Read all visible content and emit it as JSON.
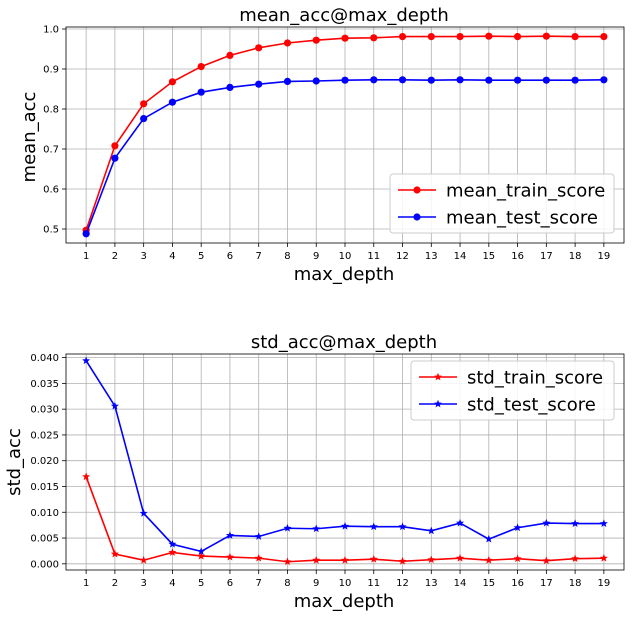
{
  "chart_data": [
    {
      "type": "line",
      "title": "mean_acc@max_depth",
      "xlabel": "max_depth",
      "ylabel": "mean_acc",
      "x": [
        1,
        2,
        3,
        4,
        5,
        6,
        7,
        8,
        9,
        10,
        11,
        12,
        13,
        14,
        15,
        16,
        17,
        18,
        19
      ],
      "ylim": [
        0.465,
        1.005
      ],
      "xlim": [
        0.3,
        19.7
      ],
      "yticks": [
        "0.5",
        "0.6",
        "0.7",
        "0.8",
        "0.9",
        "1.0"
      ],
      "yticks_values": [
        0.5,
        0.6,
        0.7,
        0.8,
        0.9,
        1.0
      ],
      "grid": true,
      "legend_position": "lower-right",
      "series": [
        {
          "name": "mean_train_score",
          "color": "#ff0000",
          "marker": "circle",
          "values": [
            0.497,
            0.708,
            0.813,
            0.868,
            0.906,
            0.934,
            0.953,
            0.965,
            0.972,
            0.977,
            0.978,
            0.981,
            0.981,
            0.981,
            0.982,
            0.981,
            0.982,
            0.981,
            0.981
          ]
        },
        {
          "name": "mean_test_score",
          "color": "#0000ff",
          "marker": "circle",
          "values": [
            0.488,
            0.677,
            0.776,
            0.817,
            0.842,
            0.854,
            0.862,
            0.869,
            0.87,
            0.872,
            0.873,
            0.873,
            0.872,
            0.873,
            0.872,
            0.872,
            0.872,
            0.872,
            0.873
          ]
        }
      ]
    },
    {
      "type": "line",
      "title": "std_acc@max_depth",
      "xlabel": "max_depth",
      "ylabel": "std_acc",
      "x": [
        1,
        2,
        3,
        4,
        5,
        6,
        7,
        8,
        9,
        10,
        11,
        12,
        13,
        14,
        15,
        16,
        17,
        18,
        19
      ],
      "ylim": [
        -0.0012,
        0.0407
      ],
      "xlim": [
        0.3,
        19.7
      ],
      "yticks": [
        "0.000",
        "0.005",
        "0.010",
        "0.015",
        "0.020",
        "0.025",
        "0.030",
        "0.035",
        "0.040"
      ],
      "yticks_values": [
        0,
        0.005,
        0.01,
        0.015,
        0.02,
        0.025,
        0.03,
        0.035,
        0.04
      ],
      "grid": true,
      "legend_position": "top-right",
      "series": [
        {
          "name": "std_train_score",
          "color": "#ff0000",
          "marker": "star",
          "values": [
            0.0169,
            0.0019,
            0.0007,
            0.0022,
            0.0015,
            0.0013,
            0.0011,
            0.0004,
            0.0007,
            0.0007,
            0.0009,
            0.0005,
            0.0008,
            0.0011,
            0.0007,
            0.001,
            0.0006,
            0.001,
            0.0011
          ]
        },
        {
          "name": "std_test_score",
          "color": "#0000ff",
          "marker": "star",
          "values": [
            0.0394,
            0.0306,
            0.0098,
            0.0038,
            0.0024,
            0.0055,
            0.0053,
            0.0069,
            0.0068,
            0.0073,
            0.0072,
            0.0072,
            0.0064,
            0.0079,
            0.0048,
            0.007,
            0.0079,
            0.0078,
            0.0078
          ]
        }
      ]
    }
  ]
}
